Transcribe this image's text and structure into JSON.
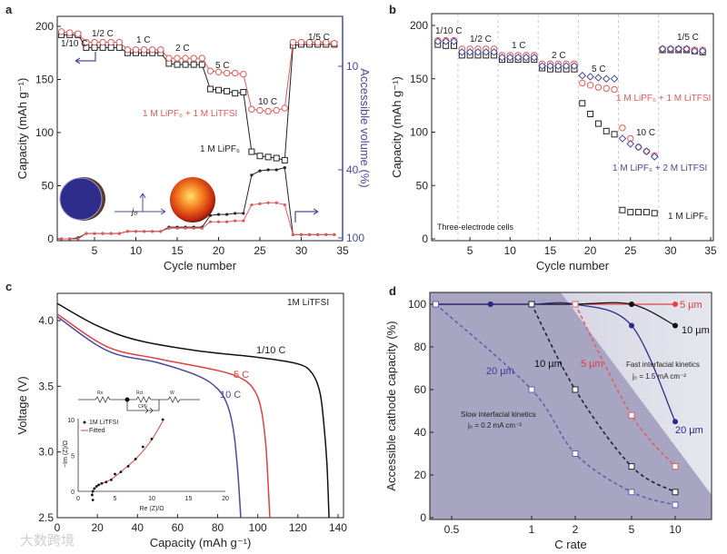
{
  "panel_letters": [
    "a",
    "b",
    "c",
    "d"
  ],
  "watermark": "大数跨境",
  "chart_data": [
    {
      "id": "a",
      "type": "line",
      "xlabel": "Cycle number",
      "ylabel": "Capacity (mAh g⁻¹)",
      "ylabel2": "Accessible volume (%)",
      "xlim": [
        0.5,
        35
      ],
      "ylim": [
        0,
        210
      ],
      "xticks": [
        5,
        10,
        15,
        20,
        25,
        30,
        35
      ],
      "yticks": [
        0,
        50,
        100,
        150,
        200
      ],
      "y2ticks": [
        "10",
        "40",
        "100"
      ],
      "x": [
        1,
        2,
        3,
        4,
        5,
        6,
        7,
        8,
        9,
        10,
        11,
        12,
        13,
        14,
        15,
        16,
        17,
        18,
        19,
        20,
        21,
        22,
        23,
        24,
        25,
        26,
        27,
        28,
        29,
        30,
        31,
        32,
        33,
        34
      ],
      "series": [
        {
          "name": "1 M LiPF₆ capacity",
          "color": "#222222",
          "marker": "square",
          "values": [
            192,
            192,
            192,
            180,
            180,
            180,
            180,
            180,
            175,
            175,
            175,
            175,
            175,
            165,
            164,
            164,
            164,
            164,
            141,
            140,
            139,
            137,
            138,
            82,
            78,
            77,
            76,
            74,
            182,
            183,
            183,
            183,
            183,
            183
          ]
        },
        {
          "name": "1 M LiPF₆ + 1 M LiTFSI capacity",
          "color": "#e05a5a",
          "marker": "circle",
          "values": [
            195,
            194,
            193,
            185,
            185,
            185,
            185,
            185,
            178,
            178,
            178,
            178,
            178,
            170,
            170,
            170,
            170,
            170,
            158,
            157,
            156,
            156,
            155,
            122,
            121,
            120,
            121,
            123,
            185,
            185,
            185,
            185,
            185,
            184
          ]
        },
        {
          "name": "1 M LiPF₆ accessible volume",
          "color": "#222222",
          "marker": "dot",
          "values": [
            0,
            0,
            1,
            5,
            5,
            5,
            5,
            5,
            7,
            7,
            7,
            7,
            7,
            11,
            11,
            11,
            11,
            11,
            22,
            23,
            23,
            24,
            24,
            60,
            64,
            65,
            65,
            67,
            4,
            4,
            4,
            4,
            4,
            4
          ]
        },
        {
          "name": "1 M LiPF₆ + 1 M LiTFSI accessible volume",
          "color": "#e05a5a",
          "marker": "dot",
          "values": [
            0,
            0,
            0,
            5,
            5,
            5,
            5,
            5,
            7,
            7,
            7,
            7,
            7,
            10,
            10,
            10,
            10,
            10,
            16,
            16,
            16,
            17,
            17,
            32,
            33,
            34,
            34,
            32,
            4,
            4,
            4,
            4,
            4,
            4
          ]
        }
      ],
      "annotations": [
        "1/10 C",
        "1/2 C",
        "1 C",
        "2 C",
        "5 C",
        "10 C",
        "1/5 C",
        "1 M LiPF₆ + 1 M LiTFSI",
        "1 M LiPF₆",
        "j₀"
      ]
    },
    {
      "id": "b",
      "type": "scatter",
      "xlabel": "Cycle number",
      "ylabel": "Capacity (mAh g⁻¹)",
      "xlim": [
        0.5,
        35.3
      ],
      "ylim": [
        0,
        210
      ],
      "xticks": [
        5,
        10,
        15,
        20,
        25,
        30,
        35
      ],
      "yticks": [
        0,
        50,
        100,
        150,
        200
      ],
      "rate_boundaries": [
        3.5,
        8.5,
        13.5,
        18.5,
        23.5,
        28.5
      ],
      "x": [
        1,
        2,
        3,
        4,
        5,
        6,
        7,
        8,
        9,
        10,
        11,
        12,
        13,
        14,
        15,
        16,
        17,
        18,
        19,
        20,
        21,
        22,
        23,
        24,
        25,
        26,
        27,
        28,
        29,
        30,
        31,
        32,
        33,
        34
      ],
      "series": [
        {
          "name": "1 M LiPF₆",
          "color": "#222222",
          "marker": "square",
          "values": [
            182,
            181,
            181,
            172,
            172,
            172,
            172,
            172,
            168,
            168,
            168,
            168,
            168,
            160,
            159,
            159,
            159,
            159,
            127,
            117,
            108,
            101,
            98,
            27,
            25,
            25,
            25,
            24,
            177,
            177,
            177,
            177,
            176,
            175
          ]
        },
        {
          "name": "1 M LiPF₆ + 1 M LiTFSI",
          "color": "#e05a5a",
          "marker": "circle",
          "values": [
            186,
            186,
            186,
            178,
            178,
            178,
            178,
            178,
            172,
            172,
            172,
            172,
            172,
            164,
            164,
            164,
            164,
            164,
            146,
            144,
            142,
            141,
            140,
            104,
            94,
            86,
            82,
            78,
            178,
            178,
            178,
            178,
            177,
            177
          ]
        },
        {
          "name": "1 M LiPF₆ + 2 M LiTFSI",
          "color": "#4a4a9a",
          "marker": "diamond",
          "values": [
            185,
            185,
            185,
            175,
            175,
            175,
            175,
            175,
            170,
            170,
            170,
            170,
            170,
            162,
            162,
            162,
            162,
            162,
            153,
            152,
            151,
            150,
            150,
            94,
            89,
            86,
            82,
            77,
            178,
            178,
            178,
            178,
            176,
            176
          ]
        }
      ],
      "annotations": [
        "1/10 C",
        "1/2 C",
        "1 C",
        "2 C",
        "5 C",
        "10 C",
        "1/5 C",
        "1 M LiPF₆ + 1 M LiTFSI",
        "1 M LiPF₆ + 2 M LiTFSI",
        "1 M LiPF₆",
        "Three-electrode cells"
      ]
    },
    {
      "id": "c",
      "type": "line",
      "xlabel": "Capacity (mAh g⁻¹)",
      "ylabel": "Voltage (V)",
      "xlim": [
        0,
        143
      ],
      "ylim": [
        2.5,
        4.2
      ],
      "xticks": [
        0,
        20,
        40,
        60,
        80,
        100,
        120,
        140
      ],
      "yticks": [
        2.5,
        3.0,
        3.5,
        4.0
      ],
      "series": [
        {
          "name": "1/10 C",
          "color": "#111111",
          "points": [
            [
              0,
              4.13
            ],
            [
              20,
              3.96
            ],
            [
              40,
              3.85
            ],
            [
              70,
              3.77
            ],
            [
              100,
              3.72
            ],
            [
              120,
              3.67
            ],
            [
              127,
              3.6
            ],
            [
              131,
              3.45
            ],
            [
              133,
              3.2
            ],
            [
              134.5,
              2.9
            ],
            [
              135.5,
              2.5
            ]
          ]
        },
        {
          "name": "5 C",
          "color": "#e04040",
          "points": [
            [
              0,
              4.05
            ],
            [
              25,
              3.8
            ],
            [
              50,
              3.71
            ],
            [
              80,
              3.62
            ],
            [
              93,
              3.55
            ],
            [
              99,
              3.45
            ],
            [
              102,
              3.3
            ],
            [
              104,
              3.05
            ],
            [
              105,
              2.8
            ],
            [
              106,
              2.5
            ]
          ]
        },
        {
          "name": "10 C",
          "color": "#4a4aa0",
          "points": [
            [
              0,
              4.03
            ],
            [
              25,
              3.77
            ],
            [
              50,
              3.68
            ],
            [
              70,
              3.58
            ],
            [
              80,
              3.48
            ],
            [
              85,
              3.35
            ],
            [
              88,
              3.15
            ],
            [
              90,
              2.85
            ],
            [
              91.5,
              2.5
            ]
          ]
        }
      ],
      "legend_text": "1M LiTFSI",
      "inset": {
        "xlabel": "Re (Z)/Ω",
        "ylabel": "−Im (Z)/Ω",
        "xlim": [
          0,
          20
        ],
        "ylim": [
          0,
          10
        ],
        "xticks": [
          0,
          5,
          10,
          15,
          20
        ],
        "yticks": [
          0,
          5,
          10
        ],
        "legend": [
          "1M LiTFSI",
          "Fitted"
        ],
        "circuit_labels": [
          "Rs",
          "Rct",
          "CPE",
          "W"
        ],
        "measured": [
          [
            2,
            -1.2
          ],
          [
            1.9,
            -0.5
          ],
          [
            2,
            0
          ],
          [
            2.2,
            0.4
          ],
          [
            2.5,
            0.7
          ],
          [
            2.8,
            0.9
          ],
          [
            3.2,
            1.1
          ],
          [
            3.8,
            1.3
          ],
          [
            4.5,
            1.6
          ],
          [
            5,
            2.4
          ],
          [
            5.8,
            2.7
          ],
          [
            6.8,
            3.5
          ],
          [
            7.8,
            4.5
          ],
          [
            8.8,
            6.2
          ],
          [
            10,
            7.3
          ],
          [
            11.5,
            10
          ]
        ],
        "fitted": [
          [
            1.9,
            -0.3
          ],
          [
            2.3,
            0.5
          ],
          [
            3,
            1
          ],
          [
            4,
            1.4
          ],
          [
            4.8,
            1.9
          ],
          [
            6,
            2.9
          ],
          [
            8,
            4.7
          ],
          [
            10,
            7.2
          ],
          [
            11.5,
            9.8
          ]
        ]
      }
    },
    {
      "id": "d",
      "type": "line",
      "xlabel": "C rate",
      "ylabel": "Accessible cathode capacity (%)",
      "xscale": "log",
      "xlim": [
        0.35,
        20
      ],
      "ylim": [
        0,
        105
      ],
      "xticks": [
        0.5,
        1,
        2,
        5,
        10
      ],
      "yticks": [
        0,
        20,
        40,
        60,
        80,
        100
      ],
      "series": [
        {
          "name": "5 µm fast",
          "kinetics": "fast",
          "color": "#e04040",
          "style": "solid",
          "points": [
            [
              0.4,
              100
            ],
            [
              0.7,
              100
            ],
            [
              1,
              100
            ],
            [
              2,
              100
            ],
            [
              5,
              100
            ],
            [
              10,
              100
            ]
          ]
        },
        {
          "name": "10 µm fast",
          "kinetics": "fast",
          "color": "#111111",
          "style": "solid",
          "points": [
            [
              0.4,
              100
            ],
            [
              0.7,
              100
            ],
            [
              1,
              100
            ],
            [
              2,
              100
            ],
            [
              5,
              100
            ],
            [
              10,
              90
            ]
          ]
        },
        {
          "name": "20 µm fast",
          "kinetics": "fast",
          "color": "#2a2a8a",
          "style": "solid",
          "points": [
            [
              0.4,
              100
            ],
            [
              0.7,
              100
            ],
            [
              1,
              100
            ],
            [
              2,
              100
            ],
            [
              5,
              90
            ],
            [
              10,
              45
            ]
          ]
        },
        {
          "name": "5 µm slow",
          "kinetics": "slow",
          "color": "#e06060",
          "style": "dashed",
          "points": [
            [
              2,
              100
            ],
            [
              5,
              48
            ],
            [
              10,
              24
            ]
          ]
        },
        {
          "name": "10 µm slow",
          "kinetics": "slow",
          "color": "#222233",
          "style": "dashed",
          "points": [
            [
              1,
              100
            ],
            [
              2,
              60
            ],
            [
              5,
              24
            ],
            [
              10,
              12
            ]
          ]
        },
        {
          "name": "20 µm slow",
          "kinetics": "slow",
          "color": "#6060b0",
          "style": "dashed",
          "points": [
            [
              0.4,
              100
            ],
            [
              1,
              60
            ],
            [
              2,
              30
            ],
            [
              5,
              12
            ],
            [
              10,
              6
            ]
          ]
        }
      ],
      "annotations": [
        "5 µm",
        "10 µm",
        "20 µm",
        "Fast interfacial kinetics",
        "j₀ = 1.5 mA cm⁻²",
        "Slow interfacial kinetics",
        "j₀ = 0.2 mA cm⁻²",
        "20 µm",
        "10 µm",
        "5 µm"
      ]
    }
  ]
}
